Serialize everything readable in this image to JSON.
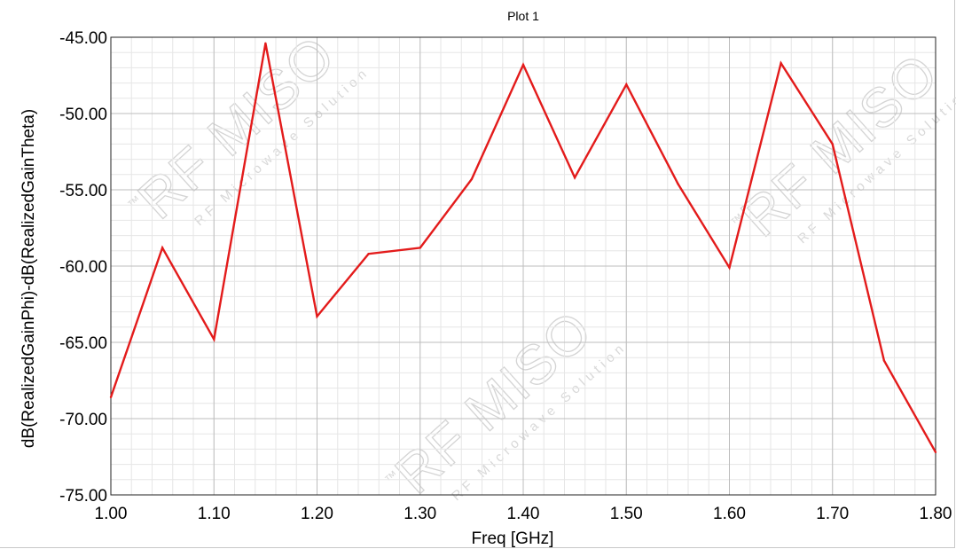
{
  "chart_data": {
    "type": "line",
    "title": "Plot 1",
    "xlabel": "Freq [GHz]",
    "ylabel": "dB(RealizedGainPhi)-dB(RealizedGainTheta)",
    "xlim": [
      1.0,
      1.8
    ],
    "ylim": [
      -75.0,
      -45.0
    ],
    "x_ticks": [
      "1.00",
      "1.10",
      "1.20",
      "1.30",
      "1.40",
      "1.50",
      "1.60",
      "1.70",
      "1.80"
    ],
    "y_ticks": [
      "-45.00",
      "-50.00",
      "-55.00",
      "-60.00",
      "-65.00",
      "-70.00",
      "-75.00"
    ],
    "grid": true,
    "series": [
      {
        "color": "#e31b1b",
        "x": [
          1.0,
          1.05,
          1.1,
          1.15,
          1.2,
          1.25,
          1.3,
          1.35,
          1.4,
          1.45,
          1.5,
          1.55,
          1.6,
          1.65,
          1.7,
          1.75,
          1.8
        ],
        "y": [
          -68.6,
          -58.8,
          -64.8,
          -45.4,
          -63.3,
          -59.2,
          -58.8,
          -54.3,
          -46.8,
          -54.2,
          -48.1,
          -54.6,
          -60.1,
          -46.7,
          -52.0,
          -66.2,
          -72.2
        ]
      }
    ]
  },
  "watermark": {
    "brand": "RF MISO",
    "tagline": "RF Microwave Solution",
    "tm": "™"
  }
}
